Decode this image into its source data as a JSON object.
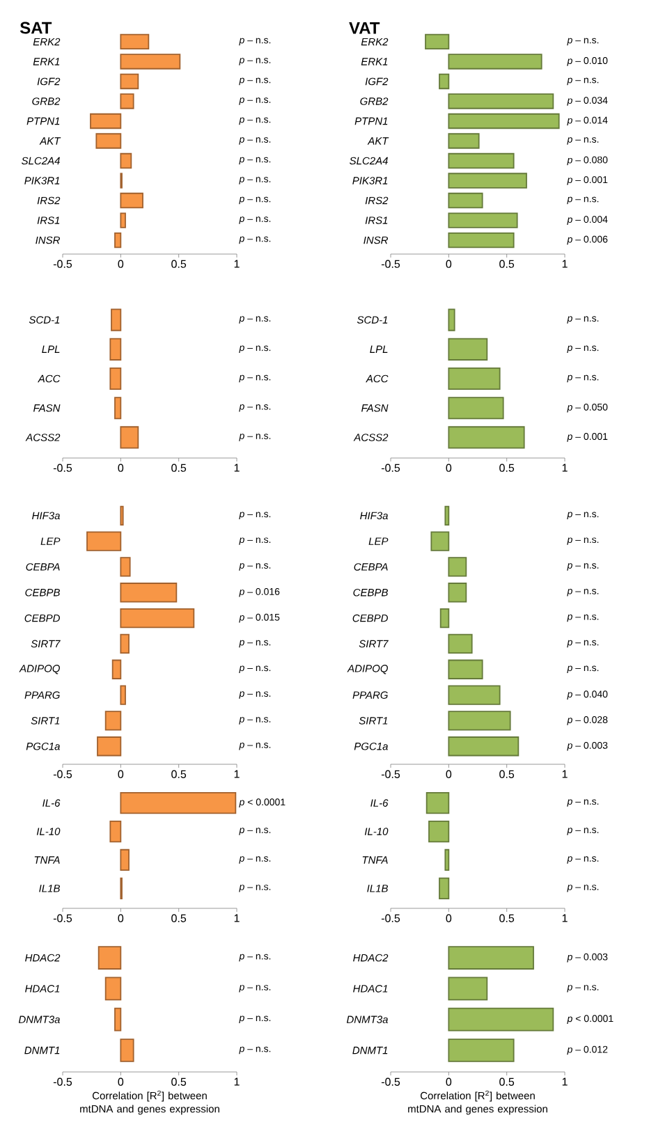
{
  "chart_data": [
    {
      "type": "bar",
      "orientation": "horizontal",
      "title": "SAT",
      "color": "#f79646",
      "xlim": [
        -0.5,
        1
      ],
      "xticks": [
        -0.5,
        0,
        0.5,
        1
      ],
      "categories": [
        "ERK2",
        "ERK1",
        "IGF2",
        "GRB2",
        "PTPN1",
        "AKT",
        "SLC2A4",
        "PIK3R1",
        "IRS2",
        "IRS1",
        "INSR"
      ],
      "values": [
        0.24,
        0.51,
        0.15,
        0.11,
        -0.26,
        -0.21,
        0.09,
        0.01,
        0.19,
        0.04,
        -0.05
      ],
      "annotations": [
        "*p* – n.s.",
        "*p* – n.s.",
        "*p* – n.s.",
        "*p* – n.s.",
        "*p* – n.s.",
        "*p* – n.s.",
        "*p* – n.s.",
        "*p* – n.s.",
        "*p* – n.s.",
        "*p* – n.s.",
        "*p* – n.s."
      ]
    },
    {
      "type": "bar",
      "orientation": "horizontal",
      "title": "VAT",
      "color": "#9bbb59",
      "xlim": [
        -0.5,
        1
      ],
      "xticks": [
        -0.5,
        0,
        0.5,
        1
      ],
      "categories": [
        "ERK2",
        "ERK1",
        "IGF2",
        "GRB2",
        "PTPN1",
        "AKT",
        "SLC2A4",
        "PIK3R1",
        "IRS2",
        "IRS1",
        "INSR"
      ],
      "values": [
        -0.2,
        0.8,
        -0.08,
        0.9,
        0.95,
        0.26,
        0.56,
        0.67,
        0.29,
        0.59,
        0.56
      ],
      "annotations": [
        "*p* – n.s.",
        "*p* – 0.010",
        "*p* – n.s.",
        "*p* – 0.034",
        "*p* – 0.014",
        "*p* – n.s.",
        "*p* – 0.080",
        "*p* – 0.001",
        "*p* – n.s.",
        "*p* – 0.004",
        "*p* – 0.006"
      ]
    },
    {
      "type": "bar",
      "orientation": "horizontal",
      "color": "#f79646",
      "xlim": [
        -0.5,
        1
      ],
      "xticks": [
        -0.5,
        0,
        0.5,
        1
      ],
      "categories": [
        "SCD-1",
        "LPL",
        "ACC",
        "FASN",
        "ACSS2"
      ],
      "values": [
        -0.08,
        -0.09,
        -0.09,
        -0.05,
        0.15
      ],
      "annotations": [
        "*p* – n.s.",
        "*p* – n.s.",
        "*p* – n.s.",
        "*p* – n.s.",
        "*p* – n.s."
      ]
    },
    {
      "type": "bar",
      "orientation": "horizontal",
      "color": "#9bbb59",
      "xlim": [
        -0.5,
        1
      ],
      "xticks": [
        -0.5,
        0,
        0.5,
        1
      ],
      "categories": [
        "SCD-1",
        "LPL",
        "ACC",
        "FASN",
        "ACSS2"
      ],
      "values": [
        0.05,
        0.33,
        0.44,
        0.47,
        0.65
      ],
      "annotations": [
        "*p* – n.s.",
        "*p* – n.s.",
        "*p* – n.s.",
        "*p* – 0.050",
        "*p* – 0.001"
      ]
    },
    {
      "type": "bar",
      "orientation": "horizontal",
      "color": "#f79646",
      "xlim": [
        -0.5,
        1
      ],
      "xticks": [
        -0.5,
        0,
        0.5,
        1
      ],
      "categories": [
        "HIF3a",
        "LEP",
        "CEBPA",
        "CEBPB",
        "CEBPD",
        "SIRT7",
        "ADIPOQ",
        "PPARG",
        "SIRT1",
        "PGC1a"
      ],
      "values": [
        0.02,
        -0.29,
        0.08,
        0.48,
        0.63,
        0.07,
        -0.07,
        0.04,
        -0.13,
        -0.2
      ],
      "annotations": [
        "*p* – n.s.",
        "*p* – n.s.",
        "*p* – n.s.",
        "*p* – 0.016",
        "*p* – 0.015",
        "*p* – n.s.",
        "*p* – n.s.",
        "*p* – n.s.",
        "*p* – n.s.",
        "*p* – n.s."
      ]
    },
    {
      "type": "bar",
      "orientation": "horizontal",
      "color": "#9bbb59",
      "xlim": [
        -0.5,
        1
      ],
      "xticks": [
        -0.5,
        0,
        0.5,
        1
      ],
      "categories": [
        "HIF3a",
        "LEP",
        "CEBPA",
        "CEBPB",
        "CEBPD",
        "SIRT7",
        "ADIPOQ",
        "PPARG",
        "SIRT1",
        "PGC1a"
      ],
      "values": [
        -0.03,
        -0.15,
        0.15,
        0.15,
        -0.07,
        0.2,
        0.29,
        0.44,
        0.53,
        0.6
      ],
      "annotations": [
        "*p* – n.s.",
        "*p* – n.s.",
        "*p* – n.s.",
        "*p* – n.s.",
        "*p* – n.s.",
        "*p* – n.s.",
        "*p* – n.s.",
        "*p* – 0.040",
        "*p* – 0.028",
        "*p* – 0.003"
      ]
    },
    {
      "type": "bar",
      "orientation": "horizontal",
      "color": "#f79646",
      "xlim": [
        -0.5,
        1
      ],
      "xticks": [
        -0.5,
        0,
        0.5,
        1
      ],
      "categories": [
        "IL-6",
        "IL-10",
        "TNFA",
        "IL1B"
      ],
      "values": [
        0.99,
        -0.09,
        0.07,
        0.01
      ],
      "annotations": [
        "*p* < 0.0001",
        "*p* – n.s.",
        "*p* – n.s.",
        "*p* – n.s."
      ]
    },
    {
      "type": "bar",
      "orientation": "horizontal",
      "color": "#9bbb59",
      "xlim": [
        -0.5,
        1
      ],
      "xticks": [
        -0.5,
        0,
        0.5,
        1
      ],
      "categories": [
        "IL-6",
        "IL-10",
        "TNFA",
        "IL1B"
      ],
      "values": [
        -0.19,
        -0.17,
        -0.03,
        -0.08
      ],
      "annotations": [
        "*p* – n.s.",
        "*p* – n.s.",
        "*p* – n.s.",
        "*p* – n.s."
      ]
    },
    {
      "type": "bar",
      "orientation": "horizontal",
      "color": "#f79646",
      "xlim": [
        -0.5,
        1
      ],
      "xticks": [
        -0.5,
        0,
        0.5,
        1
      ],
      "xlabel": "Correlation [R$^{2}$] between mtDNA and genes expression",
      "categories": [
        "HDAC2",
        "HDAC1",
        "DNMT3a",
        "DNMT1"
      ],
      "values": [
        -0.19,
        -0.13,
        -0.05,
        0.11
      ],
      "annotations": [
        "*p* – n.s.",
        "*p* – n.s.",
        "*p* – n.s.",
        "*p* – n.s."
      ]
    },
    {
      "type": "bar",
      "orientation": "horizontal",
      "color": "#9bbb59",
      "xlim": [
        -0.5,
        1
      ],
      "xticks": [
        -0.5,
        0,
        0.5,
        1
      ],
      "xlabel": "Correlation [R$^{2}$] between mtDNA and genes expression",
      "categories": [
        "HDAC2",
        "HDAC1",
        "DNMT3a",
        "DNMT1"
      ],
      "values": [
        0.73,
        0.33,
        0.9,
        0.56
      ],
      "annotations": [
        "*p* – 0.003",
        "*p* – n.s.",
        "*p* < 0.0001",
        "*p* – 0.012"
      ]
    }
  ]
}
